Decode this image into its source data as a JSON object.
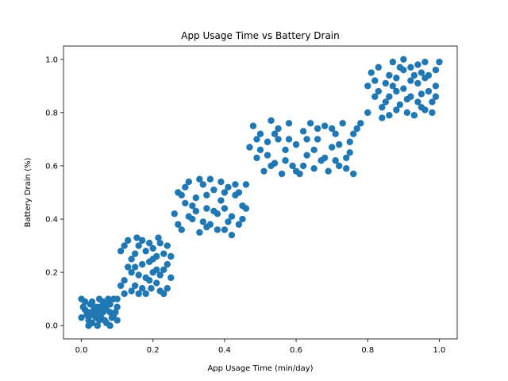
{
  "chart_data": {
    "type": "scatter",
    "title": "App Usage Time vs Battery Drain",
    "xlabel": "App Usage Time (min/day)",
    "ylabel": "Battery Drain (%)",
    "xlim": [
      -0.05,
      1.05
    ],
    "ylim": [
      -0.05,
      1.05
    ],
    "xticks": [
      0.0,
      0.2,
      0.4,
      0.6,
      0.8,
      1.0
    ],
    "yticks": [
      0.0,
      0.2,
      0.4,
      0.6,
      0.8,
      1.0
    ],
    "xtick_labels": [
      "0.0",
      "0.2",
      "0.4",
      "0.6",
      "0.8",
      "1.0"
    ],
    "ytick_labels": [
      "0.0",
      "0.2",
      "0.4",
      "0.6",
      "0.8",
      "1.0"
    ],
    "grid": false,
    "legend": false,
    "marker_color": "#1f77b4",
    "series": [
      {
        "points": [
          [
            0.0,
            0.1
          ],
          [
            0.01,
            0.06
          ],
          [
            0.02,
            0.0
          ],
          [
            0.03,
            0.09
          ],
          [
            0.04,
            0.03
          ],
          [
            0.05,
            0.1
          ],
          [
            0.06,
            0.05
          ],
          [
            0.07,
            0.01
          ],
          [
            0.08,
            0.08
          ],
          [
            0.09,
            0.04
          ],
          [
            0.1,
            0.02
          ],
          [
            0.0,
            0.03
          ],
          [
            0.01,
            0.09
          ],
          [
            0.02,
            0.05
          ],
          [
            0.03,
            0.01
          ],
          [
            0.04,
            0.07
          ],
          [
            0.05,
            0.02
          ],
          [
            0.06,
            0.09
          ],
          [
            0.07,
            0.06
          ],
          [
            0.08,
            0.0
          ],
          [
            0.09,
            0.1
          ],
          [
            0.1,
            0.07
          ],
          [
            0.015,
            0.04
          ],
          [
            0.035,
            0.06
          ],
          [
            0.055,
            0.03
          ],
          [
            0.075,
            0.1
          ],
          [
            0.095,
            0.05
          ],
          [
            0.025,
            0.08
          ],
          [
            0.045,
            0.0
          ],
          [
            0.065,
            0.07
          ],
          [
            0.085,
            0.03
          ],
          [
            0.005,
            0.07
          ],
          [
            0.045,
            0.05
          ],
          [
            0.065,
            0.02
          ],
          [
            0.03,
            0.04
          ],
          [
            0.07,
            0.09
          ],
          [
            0.05,
            0.07
          ],
          [
            0.02,
            0.02
          ],
          [
            0.08,
            0.05
          ],
          [
            0.1,
            0.1
          ],
          [
            0.11,
            0.15
          ],
          [
            0.12,
            0.3
          ],
          [
            0.13,
            0.22
          ],
          [
            0.14,
            0.13
          ],
          [
            0.15,
            0.27
          ],
          [
            0.16,
            0.19
          ],
          [
            0.17,
            0.32
          ],
          [
            0.18,
            0.12
          ],
          [
            0.19,
            0.24
          ],
          [
            0.2,
            0.29
          ],
          [
            0.21,
            0.16
          ],
          [
            0.22,
            0.31
          ],
          [
            0.23,
            0.21
          ],
          [
            0.24,
            0.14
          ],
          [
            0.25,
            0.26
          ],
          [
            0.12,
            0.17
          ],
          [
            0.14,
            0.25
          ],
          [
            0.16,
            0.12
          ],
          [
            0.18,
            0.28
          ],
          [
            0.2,
            0.2
          ],
          [
            0.22,
            0.13
          ],
          [
            0.24,
            0.23
          ],
          [
            0.13,
            0.32
          ],
          [
            0.15,
            0.15
          ],
          [
            0.17,
            0.23
          ],
          [
            0.19,
            0.17
          ],
          [
            0.21,
            0.26
          ],
          [
            0.23,
            0.12
          ],
          [
            0.25,
            0.18
          ],
          [
            0.11,
            0.28
          ],
          [
            0.14,
            0.2
          ],
          [
            0.16,
            0.3
          ],
          [
            0.18,
            0.18
          ],
          [
            0.2,
            0.25
          ],
          [
            0.22,
            0.19
          ],
          [
            0.24,
            0.3
          ],
          [
            0.12,
            0.12
          ],
          [
            0.15,
            0.22
          ],
          [
            0.17,
            0.14
          ],
          [
            0.19,
            0.31
          ],
          [
            0.21,
            0.21
          ],
          [
            0.23,
            0.27
          ],
          [
            0.155,
            0.33
          ],
          [
            0.195,
            0.14
          ],
          [
            0.215,
            0.33
          ],
          [
            0.26,
            0.42
          ],
          [
            0.27,
            0.5
          ],
          [
            0.28,
            0.36
          ],
          [
            0.29,
            0.46
          ],
          [
            0.3,
            0.54
          ],
          [
            0.31,
            0.4
          ],
          [
            0.32,
            0.48
          ],
          [
            0.33,
            0.35
          ],
          [
            0.34,
            0.53
          ],
          [
            0.35,
            0.44
          ],
          [
            0.36,
            0.38
          ],
          [
            0.37,
            0.51
          ],
          [
            0.38,
            0.42
          ],
          [
            0.39,
            0.47
          ],
          [
            0.4,
            0.36
          ],
          [
            0.41,
            0.52
          ],
          [
            0.42,
            0.41
          ],
          [
            0.43,
            0.49
          ],
          [
            0.44,
            0.38
          ],
          [
            0.45,
            0.45
          ],
          [
            0.46,
            0.53
          ],
          [
            0.27,
            0.38
          ],
          [
            0.29,
            0.52
          ],
          [
            0.31,
            0.45
          ],
          [
            0.33,
            0.55
          ],
          [
            0.35,
            0.37
          ],
          [
            0.37,
            0.43
          ],
          [
            0.39,
            0.54
          ],
          [
            0.41,
            0.39
          ],
          [
            0.43,
            0.53
          ],
          [
            0.45,
            0.4
          ],
          [
            0.28,
            0.49
          ],
          [
            0.32,
            0.43
          ],
          [
            0.34,
            0.39
          ],
          [
            0.36,
            0.55
          ],
          [
            0.38,
            0.36
          ],
          [
            0.4,
            0.44
          ],
          [
            0.42,
            0.34
          ],
          [
            0.44,
            0.5
          ],
          [
            0.3,
            0.41
          ],
          [
            0.35,
            0.49
          ],
          [
            0.4,
            0.5
          ],
          [
            0.46,
            0.44
          ],
          [
            0.47,
            0.67
          ],
          [
            0.48,
            0.75
          ],
          [
            0.49,
            0.63
          ],
          [
            0.5,
            0.72
          ],
          [
            0.51,
            0.58
          ],
          [
            0.52,
            0.69
          ],
          [
            0.53,
            0.77
          ],
          [
            0.54,
            0.61
          ],
          [
            0.55,
            0.7
          ],
          [
            0.56,
            0.57
          ],
          [
            0.57,
            0.66
          ],
          [
            0.58,
            0.76
          ],
          [
            0.59,
            0.6
          ],
          [
            0.6,
            0.68
          ],
          [
            0.61,
            0.57
          ],
          [
            0.62,
            0.73
          ],
          [
            0.63,
            0.64
          ],
          [
            0.64,
            0.76
          ],
          [
            0.65,
            0.59
          ],
          [
            0.66,
            0.7
          ],
          [
            0.67,
            0.62
          ],
          [
            0.68,
            0.75
          ],
          [
            0.69,
            0.58
          ],
          [
            0.7,
            0.67
          ],
          [
            0.71,
            0.72
          ],
          [
            0.72,
            0.6
          ],
          [
            0.73,
            0.76
          ],
          [
            0.74,
            0.63
          ],
          [
            0.75,
            0.69
          ],
          [
            0.76,
            0.57
          ],
          [
            0.77,
            0.74
          ],
          [
            0.5,
            0.66
          ],
          [
            0.53,
            0.6
          ],
          [
            0.55,
            0.74
          ],
          [
            0.57,
            0.62
          ],
          [
            0.6,
            0.58
          ],
          [
            0.63,
            0.7
          ],
          [
            0.65,
            0.66
          ],
          [
            0.68,
            0.63
          ],
          [
            0.7,
            0.74
          ],
          [
            0.72,
            0.68
          ],
          [
            0.74,
            0.59
          ],
          [
            0.76,
            0.72
          ],
          [
            0.52,
            0.64
          ],
          [
            0.58,
            0.7
          ],
          [
            0.62,
            0.6
          ],
          [
            0.66,
            0.74
          ],
          [
            0.71,
            0.62
          ],
          [
            0.49,
            0.7
          ],
          [
            0.54,
            0.72
          ],
          [
            0.75,
            0.65
          ],
          [
            0.78,
            0.76
          ],
          [
            0.8,
            0.8
          ],
          [
            0.81,
            0.95
          ],
          [
            0.82,
            0.86
          ],
          [
            0.83,
            0.97
          ],
          [
            0.84,
            0.82
          ],
          [
            0.85,
            0.91
          ],
          [
            0.86,
            0.79
          ],
          [
            0.87,
            0.99
          ],
          [
            0.88,
            0.88
          ],
          [
            0.89,
            0.83
          ],
          [
            0.9,
            0.96
          ],
          [
            0.91,
            0.85
          ],
          [
            0.92,
            0.92
          ],
          [
            0.93,
            0.79
          ],
          [
            0.94,
            0.98
          ],
          [
            0.95,
            0.87
          ],
          [
            0.96,
            0.81
          ],
          [
            0.97,
            0.94
          ],
          [
            0.98,
            0.84
          ],
          [
            0.99,
            0.9
          ],
          [
            1.0,
            0.99
          ],
          [
            0.82,
            0.92
          ],
          [
            0.84,
            0.78
          ],
          [
            0.86,
            0.94
          ],
          [
            0.88,
            0.81
          ],
          [
            0.9,
            0.89
          ],
          [
            0.92,
            0.97
          ],
          [
            0.94,
            0.84
          ],
          [
            0.96,
            0.93
          ],
          [
            0.98,
            0.8
          ],
          [
            0.83,
            0.88
          ],
          [
            0.85,
            0.84
          ],
          [
            0.87,
            0.9
          ],
          [
            0.89,
            0.97
          ],
          [
            0.91,
            0.8
          ],
          [
            0.93,
            0.94
          ],
          [
            0.95,
            0.82
          ],
          [
            0.97,
            0.88
          ],
          [
            0.99,
            0.96
          ],
          [
            0.8,
            0.9
          ],
          [
            0.86,
            0.86
          ],
          [
            0.92,
            0.86
          ],
          [
            0.96,
            0.99
          ],
          [
            0.88,
            0.93
          ],
          [
            0.94,
            0.91
          ],
          [
            0.9,
            1.0
          ],
          [
            0.95,
            0.95
          ],
          [
            0.99,
            0.86
          ]
        ]
      }
    ]
  }
}
